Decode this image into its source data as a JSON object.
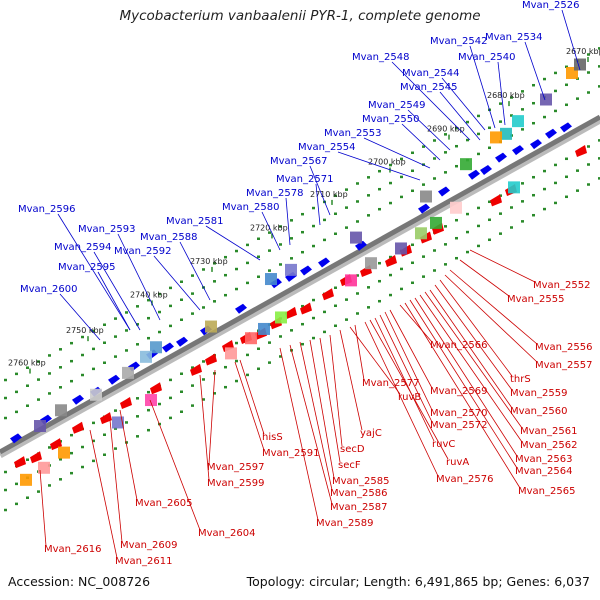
{
  "title": "Mycobacterium vanbaalenii PYR-1, complete genome",
  "footer": {
    "accession": "Accession: NC_008726",
    "summary": "Topology: circular; Length: 6,491,865 bp; Genes: 6,037"
  },
  "colors": {
    "backbone": "#777777",
    "tick": "#2a8a2a",
    "forward_gene": "#0000ee",
    "reverse_gene": "#ee0000",
    "forward_label": "#0000cc",
    "reverse_label": "#cc0000"
  },
  "kbp_ticks": [
    "2670 kbp",
    "2680 kbp",
    "2690 kbp",
    "2700 kbp",
    "2710 kbp",
    "2720 kbp",
    "2730 kbp",
    "2740 kbp",
    "2750 kbp",
    "2760 kbp"
  ],
  "labels_top": [
    "Mvan_2526",
    "Mvan_2534",
    "Mvan_2540",
    "Mvan_2542",
    "Mvan_2544",
    "Mvan_2545",
    "Mvan_2548",
    "Mvan_2549",
    "Mvan_2550",
    "Mvan_2553",
    "Mvan_2554",
    "Mvan_2567",
    "Mvan_2571",
    "Mvan_2578",
    "Mvan_2580",
    "Mvan_2581",
    "Mvan_2588",
    "Mvan_2592",
    "Mvan_2593",
    "Mvan_2594",
    "Mvan_2595",
    "Mvan_2596",
    "Mvan_2600"
  ],
  "labels_bottom": [
    "Mvan_2552",
    "Mvan_2555",
    "Mvan_2556",
    "Mvan_2557",
    "thrS",
    "Mvan_2559",
    "Mvan_2560",
    "Mvan_2561",
    "Mvan_2562",
    "Mvan_2563",
    "Mvan_2564",
    "Mvan_2565",
    "Mvan_2566",
    "Mvan_2569",
    "Mvan_2570",
    "Mvan_2572",
    "ruvC",
    "ruvA",
    "Mvan_2576",
    "Mvan_2577",
    "ruvB",
    "yajC",
    "secD",
    "secF",
    "Mvan_2585",
    "Mvan_2586",
    "Mvan_2587",
    "Mvan_2589",
    "hisS",
    "Mvan_2591",
    "Mvan_2597",
    "Mvan_2599",
    "Mvan_2604",
    "Mvan_2605",
    "Mvan_2609",
    "Mvan_2611",
    "Mvan_2616"
  ]
}
